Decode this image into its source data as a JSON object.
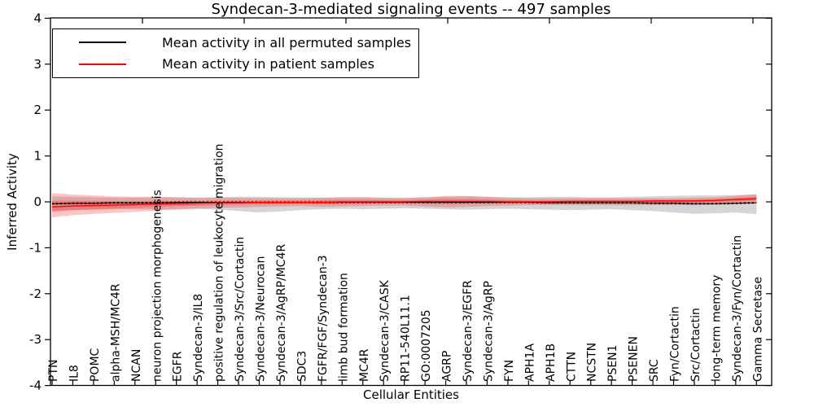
{
  "figure": {
    "title": "Syndecan-3-mediated signaling events -- 497 samples",
    "background": "#ffffff",
    "axis_color": "#000000"
  },
  "legend": {
    "items": [
      {
        "label": "Mean activity in all permuted samples",
        "color": "#000000"
      },
      {
        "label": "Mean activity in patient samples",
        "color": "#ff0000"
      }
    ]
  },
  "chart_data": {
    "type": "line",
    "title": "Syndecan-3-mediated signaling events -- 497 samples",
    "xlabel": "Cellular Entities",
    "ylabel": "Inferred Activity",
    "ylim": [
      -4,
      4
    ],
    "y_ticks": [
      4,
      3,
      2,
      1,
      0,
      -1,
      -2,
      -3,
      -4
    ],
    "grid": false,
    "legend_position": "upper left",
    "x_tick_label_rotation": 90,
    "categories": [
      "PTN",
      "IL8",
      "POMC",
      "alpha-MSH/MC4R",
      "NCAN",
      "neuron projection morphogenesis",
      "EGFR",
      "Syndecan-3/IL8",
      "positive regulation of leukocyte migration",
      "Syndecan-3/Src/Cortactin",
      "Syndecan-3/Neurocan",
      "Syndecan-3/AgRP/MC4R",
      "SDC3",
      "FGFR/FGF/Syndecan-3",
      "limb bud formation",
      "MC4R",
      "Syndecan-3/CASK",
      "RP11-540L11.1",
      "GO:0007205",
      "AGRP",
      "Syndecan-3/EGFR",
      "Syndecan-3/AgRP",
      "FYN",
      "APH1A",
      "APH1B",
      "CTTN",
      "NCSTN",
      "PSEN1",
      "PSENEN",
      "SRC",
      "Fyn/Cortactin",
      "Src/Cortactin",
      "long-term memory",
      "Syndecan-3/Fyn/Cortactin",
      "Gamma Secretase"
    ],
    "series": [
      {
        "name": "Mean activity in all permuted samples",
        "color": "#000000",
        "band_color": "#808080",
        "values": [
          -0.04,
          -0.03,
          -0.03,
          -0.02,
          -0.02,
          -0.02,
          -0.01,
          -0.01,
          -0.01,
          -0.01,
          -0.01,
          -0.01,
          -0.01,
          -0.01,
          -0.01,
          -0.01,
          -0.01,
          -0.01,
          -0.01,
          -0.01,
          -0.01,
          -0.01,
          -0.01,
          -0.01,
          -0.02,
          -0.02,
          -0.02,
          -0.02,
          -0.02,
          -0.03,
          -0.03,
          -0.04,
          -0.04,
          -0.03,
          -0.02
        ],
        "band_upper": [
          0.12,
          0.11,
          0.1,
          0.09,
          0.09,
          0.1,
          0.1,
          0.09,
          0.1,
          0.11,
          0.11,
          0.1,
          0.1,
          0.09,
          0.1,
          0.1,
          0.09,
          0.09,
          0.1,
          0.11,
          0.12,
          0.11,
          0.1,
          0.1,
          0.11,
          0.11,
          0.1,
          0.1,
          0.11,
          0.12,
          0.13,
          0.14,
          0.14,
          0.15,
          0.16
        ],
        "band_lower": [
          -0.2,
          -0.18,
          -0.17,
          -0.16,
          -0.16,
          -0.17,
          -0.16,
          -0.15,
          -0.17,
          -0.2,
          -0.23,
          -0.21,
          -0.18,
          -0.16,
          -0.15,
          -0.16,
          -0.15,
          -0.14,
          -0.15,
          -0.16,
          -0.17,
          -0.16,
          -0.15,
          -0.16,
          -0.17,
          -0.18,
          -0.17,
          -0.16,
          -0.18,
          -0.2,
          -0.23,
          -0.26,
          -0.25,
          -0.23,
          -0.27
        ]
      },
      {
        "name": "Mean activity in patient samples",
        "color": "#ff0000",
        "band_color": "#ff2a2a",
        "values": [
          -0.11,
          -0.09,
          -0.08,
          -0.07,
          -0.06,
          -0.05,
          -0.04,
          -0.03,
          -0.02,
          -0.02,
          -0.01,
          -0.01,
          -0.01,
          -0.01,
          0.0,
          0.0,
          0.0,
          0.0,
          0.01,
          0.01,
          0.01,
          0.01,
          0.0,
          0.0,
          0.0,
          0.01,
          0.01,
          0.01,
          0.01,
          0.02,
          0.02,
          0.02,
          0.03,
          0.05,
          0.07
        ],
        "band_upper": [
          0.19,
          0.16,
          0.14,
          0.12,
          0.11,
          0.11,
          0.1,
          0.09,
          0.09,
          0.09,
          0.08,
          0.08,
          0.08,
          0.09,
          0.1,
          0.1,
          0.09,
          0.08,
          0.1,
          0.13,
          0.13,
          0.11,
          0.09,
          0.08,
          0.08,
          0.08,
          0.08,
          0.08,
          0.08,
          0.08,
          0.08,
          0.09,
          0.1,
          0.13,
          0.17
        ],
        "band_lower": [
          -0.34,
          -0.29,
          -0.26,
          -0.24,
          -0.22,
          -0.19,
          -0.17,
          -0.15,
          -0.13,
          -0.12,
          -0.11,
          -0.1,
          -0.09,
          -0.11,
          -0.1,
          -0.09,
          -0.08,
          -0.08,
          -0.1,
          -0.12,
          -0.11,
          -0.09,
          -0.08,
          -0.07,
          -0.07,
          -0.07,
          -0.07,
          -0.07,
          -0.07,
          -0.07,
          -0.07,
          -0.07,
          -0.06,
          -0.05,
          -0.03
        ]
      }
    ]
  }
}
